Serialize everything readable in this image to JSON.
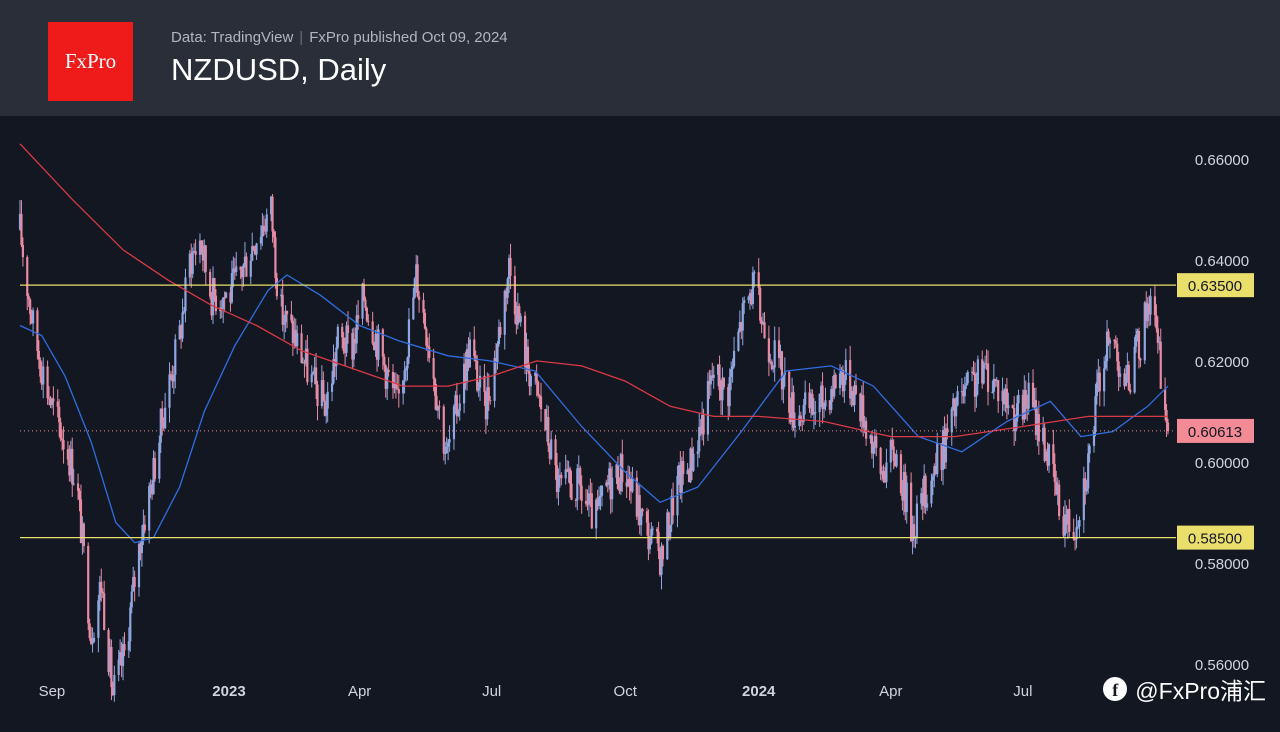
{
  "header": {
    "logo_text": "FxPro",
    "data_source": "Data: TradingView",
    "published": "FxPro published Oct 09, 2024",
    "title": "NZDUSD, Daily"
  },
  "watermark": {
    "text": "@FxPro浦汇",
    "icon": "social-media-icon"
  },
  "colors": {
    "background": "#131722",
    "header": "#2a2e39",
    "logo": "#ef1b1b",
    "up_candle": "#8fa7e0",
    "down_candle": "#e78ba2",
    "ma_fast": "#2f6ee0",
    "ma_slow": "#d93a45",
    "level_line": "#e9df6a",
    "current_price": "#f28b96"
  },
  "chart_data": {
    "type": "candlestick",
    "title": "NZDUSD, Daily",
    "ylim": [
      0.5465,
      0.6685
    ],
    "yticks": [
      "0.66000",
      "0.64000",
      "0.62000",
      "0.60000",
      "0.58000",
      "0.56000"
    ],
    "xticks": [
      "Sep",
      "2023",
      "Apr",
      "Jul",
      "Oct",
      "2024",
      "Apr",
      "Jul"
    ],
    "xtick_dates": [
      "2022-09-01",
      "2023-01-01",
      "2023-04-01",
      "2023-07-01",
      "2023-10-01",
      "2024-01-01",
      "2024-04-01",
      "2024-07-01"
    ],
    "date_range": [
      "2022-08-10",
      "2024-10-09"
    ],
    "close_path": [
      [
        "2022-08-10",
        0.646
      ],
      [
        "2022-08-15",
        0.635
      ],
      [
        "2022-08-20",
        0.625
      ],
      [
        "2022-08-25",
        0.619
      ],
      [
        "2022-09-01",
        0.611
      ],
      [
        "2022-09-10",
        0.604
      ],
      [
        "2022-09-18",
        0.596
      ],
      [
        "2022-09-23",
        0.581
      ],
      [
        "2022-09-28",
        0.566
      ],
      [
        "2022-10-05",
        0.576
      ],
      [
        "2022-10-13",
        0.554
      ],
      [
        "2022-10-21",
        0.562
      ],
      [
        "2022-11-01",
        0.585
      ],
      [
        "2022-11-10",
        0.598
      ],
      [
        "2022-11-18",
        0.612
      ],
      [
        "2022-11-28",
        0.625
      ],
      [
        "2022-12-05",
        0.64
      ],
      [
        "2022-12-12",
        0.644
      ],
      [
        "2022-12-20",
        0.633
      ],
      [
        "2023-01-01",
        0.633
      ],
      [
        "2023-01-10",
        0.638
      ],
      [
        "2023-01-20",
        0.645
      ],
      [
        "2023-01-30",
        0.65
      ],
      [
        "2023-02-05",
        0.63
      ],
      [
        "2023-02-15",
        0.625
      ],
      [
        "2023-02-27",
        0.616
      ],
      [
        "2023-03-09",
        0.611
      ],
      [
        "2023-03-17",
        0.624
      ],
      [
        "2023-03-27",
        0.623
      ],
      [
        "2023-04-04",
        0.633
      ],
      [
        "2023-04-15",
        0.622
      ],
      [
        "2023-04-27",
        0.611
      ],
      [
        "2023-05-04",
        0.624
      ],
      [
        "2023-05-10",
        0.637
      ],
      [
        "2023-05-18",
        0.625
      ],
      [
        "2023-05-31",
        0.601
      ],
      [
        "2023-06-10",
        0.615
      ],
      [
        "2023-06-16",
        0.623
      ],
      [
        "2023-06-26",
        0.61
      ],
      [
        "2023-07-03",
        0.62
      ],
      [
        "2023-07-13",
        0.639
      ],
      [
        "2023-07-25",
        0.62
      ],
      [
        "2023-08-05",
        0.61
      ],
      [
        "2023-08-16",
        0.595
      ],
      [
        "2023-08-30",
        0.595
      ],
      [
        "2023-09-10",
        0.588
      ],
      [
        "2023-09-20",
        0.596
      ],
      [
        "2023-09-30",
        0.599
      ],
      [
        "2023-10-06",
        0.594
      ],
      [
        "2023-10-16",
        0.586
      ],
      [
        "2023-10-26",
        0.581
      ],
      [
        "2023-11-05",
        0.595
      ],
      [
        "2023-11-15",
        0.6
      ],
      [
        "2023-11-25",
        0.61
      ],
      [
        "2023-12-01",
        0.618
      ],
      [
        "2023-12-10",
        0.613
      ],
      [
        "2023-12-20",
        0.628
      ],
      [
        "2023-12-28",
        0.635
      ],
      [
        "2024-01-06",
        0.625
      ],
      [
        "2024-01-15",
        0.619
      ],
      [
        "2024-01-25",
        0.61
      ],
      [
        "2024-02-05",
        0.61
      ],
      [
        "2024-02-15",
        0.612
      ],
      [
        "2024-02-26",
        0.618
      ],
      [
        "2024-03-06",
        0.615
      ],
      [
        "2024-03-15",
        0.608
      ],
      [
        "2024-03-25",
        0.598
      ],
      [
        "2024-04-04",
        0.602
      ],
      [
        "2024-04-16",
        0.587
      ],
      [
        "2024-04-26",
        0.595
      ],
      [
        "2024-05-06",
        0.602
      ],
      [
        "2024-05-16",
        0.611
      ],
      [
        "2024-05-26",
        0.615
      ],
      [
        "2024-06-06",
        0.618
      ],
      [
        "2024-06-16",
        0.614
      ],
      [
        "2024-06-27",
        0.609
      ],
      [
        "2024-07-05",
        0.613
      ],
      [
        "2024-07-17",
        0.603
      ],
      [
        "2024-07-27",
        0.59
      ],
      [
        "2024-08-05",
        0.587
      ],
      [
        "2024-08-15",
        0.6
      ],
      [
        "2024-08-25",
        0.621
      ],
      [
        "2024-09-02",
        0.624
      ],
      [
        "2024-09-10",
        0.615
      ],
      [
        "2024-09-20",
        0.624
      ],
      [
        "2024-09-27",
        0.634
      ],
      [
        "2024-10-03",
        0.62
      ],
      [
        "2024-10-09",
        0.6061
      ]
    ],
    "series": [
      {
        "kind": "moving-average",
        "color": "#2f6ee0",
        "values": [
          [
            "2022-08-10",
            0.627
          ],
          [
            "2022-08-25",
            0.625
          ],
          [
            "2022-09-10",
            0.617
          ],
          [
            "2022-09-28",
            0.604
          ],
          [
            "2022-10-15",
            0.588
          ],
          [
            "2022-10-28",
            0.584
          ],
          [
            "2022-11-10",
            0.585
          ],
          [
            "2022-11-28",
            0.595
          ],
          [
            "2022-12-15",
            0.61
          ],
          [
            "2023-01-05",
            0.623
          ],
          [
            "2023-01-28",
            0.634
          ],
          [
            "2023-02-10",
            0.637
          ],
          [
            "2023-03-05",
            0.633
          ],
          [
            "2023-04-01",
            0.627
          ],
          [
            "2023-04-28",
            0.624
          ],
          [
            "2023-06-01",
            0.621
          ],
          [
            "2023-06-30",
            0.62
          ],
          [
            "2023-07-31",
            0.618
          ],
          [
            "2023-09-01",
            0.607
          ],
          [
            "2023-10-01",
            0.598
          ],
          [
            "2023-10-25",
            0.592
          ],
          [
            "2023-11-20",
            0.595
          ],
          [
            "2023-12-20",
            0.606
          ],
          [
            "2024-01-20",
            0.618
          ],
          [
            "2024-02-20",
            0.619
          ],
          [
            "2024-03-20",
            0.615
          ],
          [
            "2024-04-20",
            0.605
          ],
          [
            "2024-05-20",
            0.602
          ],
          [
            "2024-06-20",
            0.608
          ],
          [
            "2024-07-20",
            0.612
          ],
          [
            "2024-08-10",
            0.605
          ],
          [
            "2024-09-01",
            0.606
          ],
          [
            "2024-09-25",
            0.611
          ],
          [
            "2024-10-09",
            0.615
          ]
        ]
      },
      {
        "kind": "moving-average",
        "color": "#d93a45",
        "values": [
          [
            "2022-08-10",
            0.663
          ],
          [
            "2022-09-15",
            0.652
          ],
          [
            "2022-10-20",
            0.642
          ],
          [
            "2022-11-20",
            0.636
          ],
          [
            "2022-12-20",
            0.631
          ],
          [
            "2023-01-20",
            0.627
          ],
          [
            "2023-02-20",
            0.622
          ],
          [
            "2023-04-01",
            0.618
          ],
          [
            "2023-05-01",
            0.615
          ],
          [
            "2023-06-01",
            0.615
          ],
          [
            "2023-07-01",
            0.617
          ],
          [
            "2023-08-01",
            0.62
          ],
          [
            "2023-09-01",
            0.619
          ],
          [
            "2023-10-01",
            0.616
          ],
          [
            "2023-11-01",
            0.611
          ],
          [
            "2023-12-01",
            0.609
          ],
          [
            "2024-01-01",
            0.609
          ],
          [
            "2024-02-15",
            0.608
          ],
          [
            "2024-04-01",
            0.605
          ],
          [
            "2024-05-15",
            0.605
          ],
          [
            "2024-07-01",
            0.607
          ],
          [
            "2024-08-15",
            0.609
          ],
          [
            "2024-09-20",
            0.609
          ],
          [
            "2024-10-09",
            0.609
          ]
        ]
      }
    ],
    "horizontal_levels": [
      {
        "value": 0.635,
        "label": "0.63500",
        "color": "#e9df6a"
      },
      {
        "value": 0.585,
        "label": "0.58500",
        "color": "#e9df6a"
      }
    ],
    "current_price": {
      "value": 0.60613,
      "label": "0.60613",
      "color": "#f28b96"
    },
    "grid": false
  }
}
